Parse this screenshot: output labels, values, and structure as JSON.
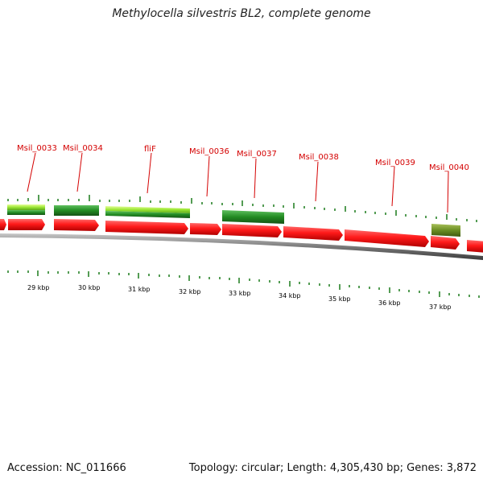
{
  "title": "Methylocella silvestris BL2, complete genome",
  "footer": {
    "accession": "Accession: NC_011666",
    "summary": "Topology: circular; Length: 4,305,430 bp; Genes: 3,872"
  },
  "colors": {
    "gene_label": "#d40000",
    "cds_red": "#ff1a1a",
    "light_green": "#9ae633",
    "dark_green": "#228b22",
    "olive": "#6b8e23",
    "tick_green": "#1a7a1a",
    "backbone": "#808080"
  },
  "gene_labels": [
    "Msil_0033",
    "Msil_0034",
    "fliF",
    "Msil_0036",
    "Msil_0037",
    "Msil_0038",
    "Msil_0039",
    "Msil_0040"
  ],
  "kbp_labels": [
    "29 kbp",
    "30 kbp",
    "31 kbp",
    "32 kbp",
    "33 kbp",
    "34 kbp",
    "35 kbp",
    "36 kbp",
    "37 kbp"
  ]
}
